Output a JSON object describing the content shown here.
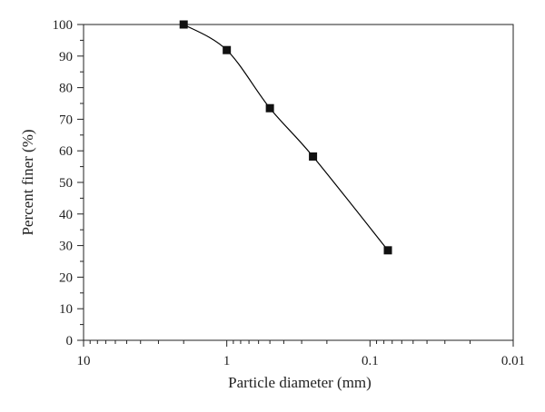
{
  "chart_data": {
    "type": "line",
    "title": "",
    "xlabel": "Particle diameter (mm)",
    "ylabel": "Percent finer (%)",
    "x_scale": "log",
    "x_reversed": true,
    "xlim": [
      10,
      0.01
    ],
    "ylim": [
      0,
      100
    ],
    "x_ticks": [
      10,
      1,
      0.1,
      0.01
    ],
    "x_tick_labels": [
      "10",
      "1",
      "0.1",
      "0.01"
    ],
    "y_ticks": [
      0,
      10,
      20,
      30,
      40,
      50,
      60,
      70,
      80,
      90,
      100
    ],
    "y_tick_labels": [
      "0",
      "10",
      "20",
      "30",
      "40",
      "50",
      "60",
      "70",
      "80",
      "90",
      "100"
    ],
    "grid": false,
    "marker": "square",
    "series": [
      {
        "x": [
          2,
          1,
          0.5,
          0.25,
          0.075
        ],
        "y": [
          100,
          91.9,
          73.5,
          58.2,
          28.5
        ]
      }
    ],
    "colors": {
      "line": "#000000",
      "marker": "#111111",
      "axis": "#222222"
    }
  }
}
